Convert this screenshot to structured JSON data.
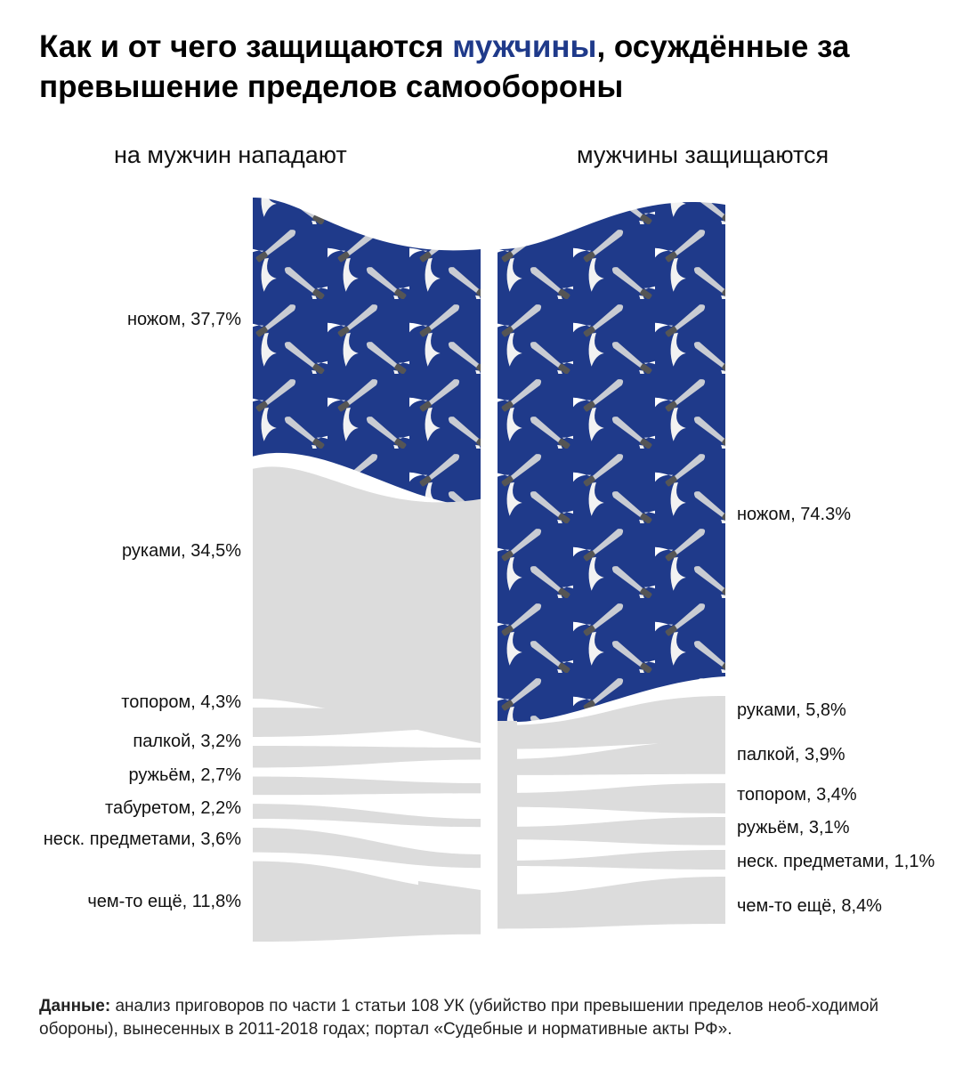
{
  "title": {
    "part1": "Как и от чего защищаются ",
    "highlight": "мужчины",
    "part2": ", осуждённые за превышение пределов самообороны"
  },
  "colors": {
    "knife_band": "#1f3a8a",
    "other_band": "#dcdcdc",
    "highlight": "#1f3a8a"
  },
  "chart_data": {
    "type": "sankey",
    "left": {
      "heading": "на мужчин нападают",
      "items": [
        {
          "label": "ножом, 37,7%",
          "value": 37.7,
          "highlight": true
        },
        {
          "label": "руками, 34,5%",
          "value": 34.5
        },
        {
          "label": "топором, 4,3%",
          "value": 4.3
        },
        {
          "label": "палкой, 3,2%",
          "value": 3.2
        },
        {
          "label": "ружьём, 2,7%",
          "value": 2.7
        },
        {
          "label": "табуретом, 2,2%",
          "value": 2.2
        },
        {
          "label": "неск. предметами, 3,6%",
          "value": 3.6
        },
        {
          "label": "чем-то ещё, 11,8%",
          "value": 11.8
        }
      ]
    },
    "right": {
      "heading": "мужчины защищаются",
      "items": [
        {
          "label": "ножом, 74.3%",
          "value": 74.3,
          "highlight": true
        },
        {
          "label": "руками, 5,8%",
          "value": 5.8
        },
        {
          "label": "палкой, 3,9%",
          "value": 3.9
        },
        {
          "label": "топором, 3,4%",
          "value": 3.4
        },
        {
          "label": "ружьём, 3,1%",
          "value": 3.1
        },
        {
          "label": "неск. предметами, 1,1%",
          "value": 1.1
        },
        {
          "label": "чем-то ещё, 8,4%",
          "value": 8.4
        }
      ]
    },
    "pattern_icon": "knife-with-wings-icon"
  },
  "source": {
    "label": "Данные:",
    "text": " анализ приговоров по части 1 статьи 108 УК (убийство при превышении пределов необ-ходимой обороны), вынесенных в 2011-2018 годах; портал «Судебные и нормативные акты РФ»."
  }
}
